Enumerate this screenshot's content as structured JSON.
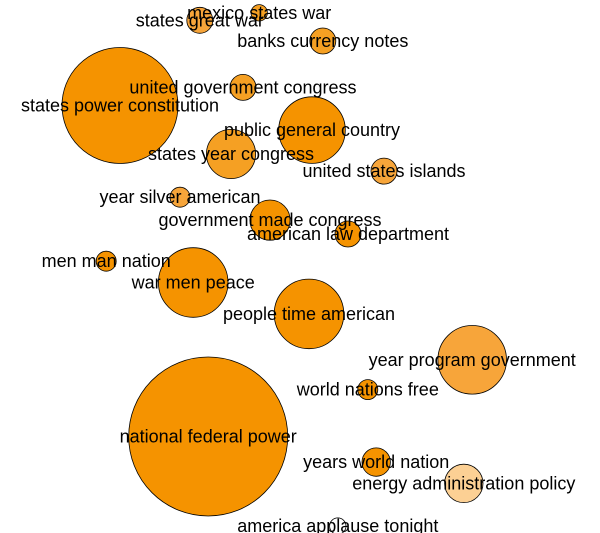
{
  "chart_data": {
    "type": "scatter",
    "title": "",
    "xlabel": "",
    "ylabel": "",
    "grid": false,
    "legend": "none",
    "size_range": [
      0,
      1
    ],
    "points": [
      {
        "label": "mexico states war",
        "x": 0.432,
        "y": 0.976,
        "size": 0.02,
        "color": "#f5a023"
      },
      {
        "label": "states great war",
        "x": 0.333,
        "y": 0.962,
        "size": 0.05,
        "color": "#f7a53a"
      },
      {
        "label": "banks currency notes",
        "x": 0.538,
        "y": 0.923,
        "size": 0.05,
        "color": "#f5a023"
      },
      {
        "label": "united government congress",
        "x": 0.405,
        "y": 0.836,
        "size": 0.05,
        "color": "#f5a023"
      },
      {
        "label": "states power constitution",
        "x": 0.2,
        "y": 0.802,
        "size": 1.0,
        "color": "#f59300"
      },
      {
        "label": "public general country",
        "x": 0.52,
        "y": 0.756,
        "size": 0.33,
        "color": "#f59300"
      },
      {
        "label": "states year congress",
        "x": 0.385,
        "y": 0.711,
        "size": 0.18,
        "color": "#f5a023"
      },
      {
        "label": "united states islands",
        "x": 0.64,
        "y": 0.679,
        "size": 0.05,
        "color": "#f7a53a"
      },
      {
        "label": "year silver american",
        "x": 0.3,
        "y": 0.63,
        "size": 0.03,
        "color": "#f7a53a"
      },
      {
        "label": "government made congress",
        "x": 0.45,
        "y": 0.587,
        "size": 0.12,
        "color": "#f59300"
      },
      {
        "label": "american law department",
        "x": 0.58,
        "y": 0.561,
        "size": 0.05,
        "color": "#f59300"
      },
      {
        "label": "men man nation",
        "x": 0.177,
        "y": 0.51,
        "size": 0.03,
        "color": "#f59300"
      },
      {
        "label": "war men peace",
        "x": 0.322,
        "y": 0.47,
        "size": 0.36,
        "color": "#f59300"
      },
      {
        "label": "people time american",
        "x": 0.515,
        "y": 0.411,
        "size": 0.36,
        "color": "#f59300"
      },
      {
        "label": "year program government",
        "x": 0.787,
        "y": 0.325,
        "size": 0.35,
        "color": "#f7a53a"
      },
      {
        "label": "world nations free",
        "x": 0.613,
        "y": 0.269,
        "size": 0.03,
        "color": "#f59300"
      },
      {
        "label": "national federal power",
        "x": 0.347,
        "y": 0.181,
        "size": 1.88,
        "color": "#f59300"
      },
      {
        "label": "years world nation",
        "x": 0.627,
        "y": 0.133,
        "size": 0.06,
        "color": "#f59300"
      },
      {
        "label": "energy administration policy",
        "x": 0.773,
        "y": 0.093,
        "size": 0.11,
        "color": "#fcd094"
      },
      {
        "label": "america applause tonight",
        "x": 0.563,
        "y": 0.013,
        "size": 0.02,
        "color": "#ffffff"
      }
    ]
  }
}
